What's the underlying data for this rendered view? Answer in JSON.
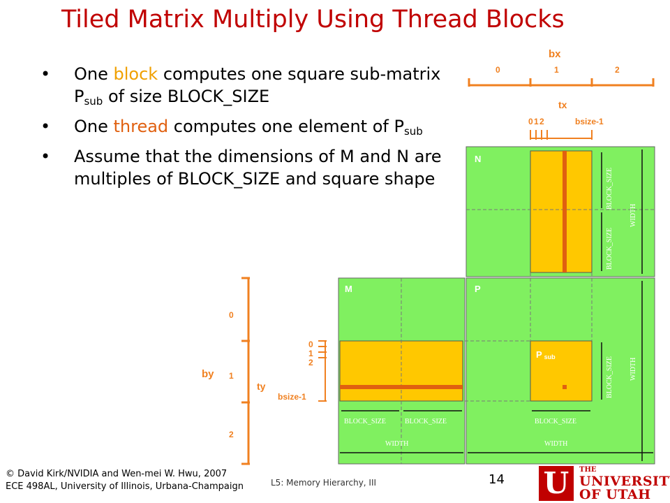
{
  "title": "Tiled Matrix Multiply Using Thread Blocks",
  "bullets": [
    {
      "pre": "One ",
      "hl": "block",
      "post": " computes one square sub-matrix P",
      "sub": "sub",
      "tail": " of size BLOCK_SIZE"
    },
    {
      "pre": "One ",
      "hl": "thread",
      "post": " computes one element of P",
      "sub": "sub",
      "tail": ""
    },
    {
      "text": "Assume that the dimensions of M and N are multiples of BLOCK_SIZE and square shape"
    }
  ],
  "diagram": {
    "bx_label": "bx",
    "bx_ticks": [
      "0",
      "1",
      "2"
    ],
    "tx_label": "tx",
    "tx_ticks": [
      "0",
      "1",
      "2",
      "bsize-1"
    ],
    "by_label": "by",
    "by_ticks": [
      "0",
      "1",
      "2"
    ],
    "ty_label": "ty",
    "ty_ticks": [
      "0",
      "1",
      "2",
      "bsize-1"
    ],
    "matrix_n": "N",
    "matrix_m": "M",
    "matrix_p": "P",
    "psub_main": "P",
    "psub_sub": "sub",
    "block_size": "BLOCK_SIZE",
    "width": "WIDTH",
    "colors": {
      "green": "#80f060",
      "orange": "#ffc800",
      "dark_orange": "#e06010",
      "label_orange": "#f08020"
    }
  },
  "footer": {
    "copyright_line1": "© David Kirk/NVIDIA and Wen-mei W. Hwu, 2007",
    "copyright_line2": "ECE 498AL, University of Illinois, Urbana-Champaign",
    "lecture": "L5: Memory Hierarchy, III",
    "page": "14"
  },
  "logo": {
    "mark": "U",
    "the": "THE",
    "line1": "UNIVERSITY",
    "line2": "OF UTAH"
  }
}
